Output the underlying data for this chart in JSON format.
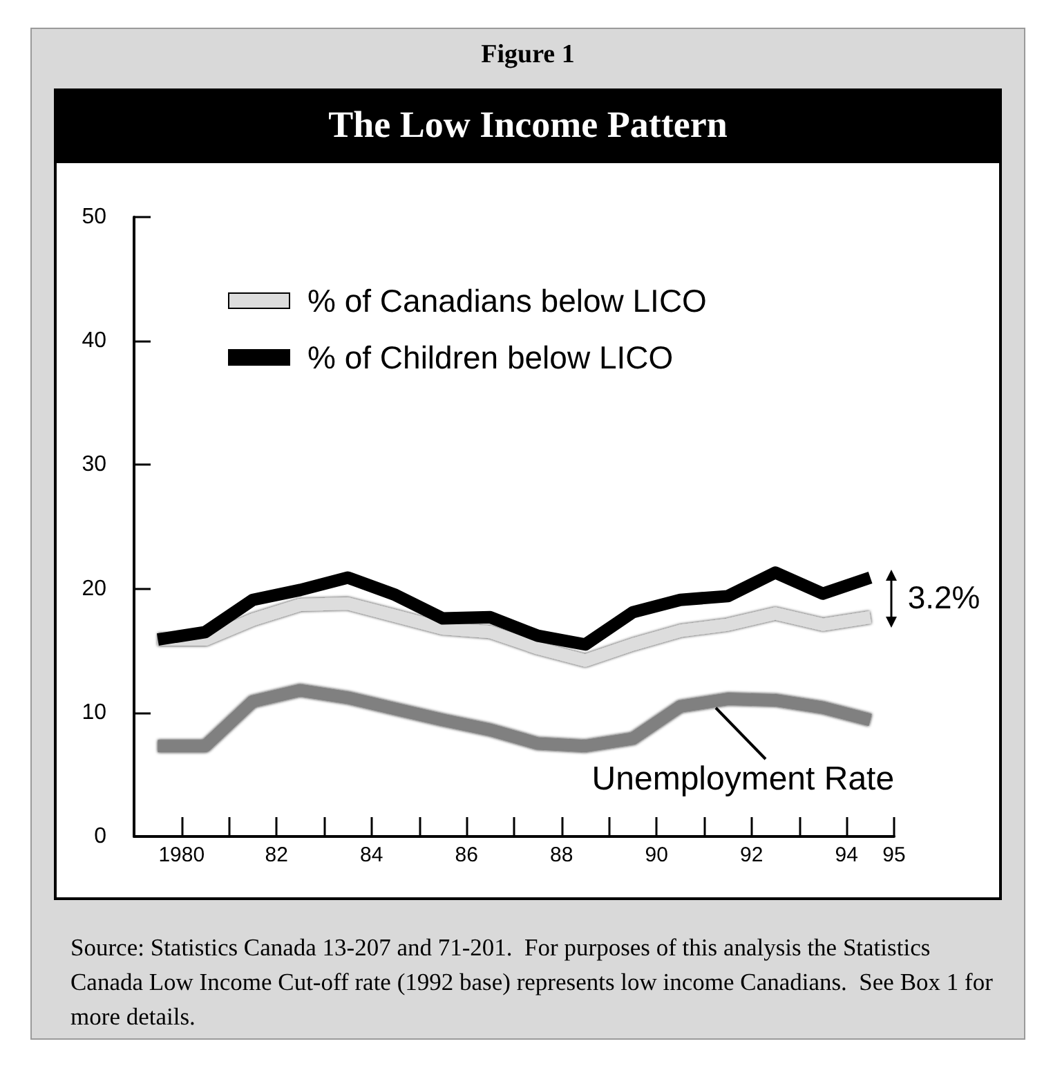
{
  "chart_data": {
    "type": "line",
    "subtitle": "Figure 1",
    "title": "The Low Income Pattern",
    "x": [
      1979.5,
      1980.5,
      1981.5,
      1982.5,
      1983.5,
      1984.5,
      1985.5,
      1986.5,
      1987.5,
      1988.5,
      1989.5,
      1990.5,
      1991.5,
      1992.5,
      1993.5,
      1994.5
    ],
    "series": [
      {
        "name": "% of Canadians below LICO",
        "color": "#dddddd",
        "values": [
          15.9,
          15.9,
          17.5,
          18.7,
          18.8,
          17.8,
          16.8,
          16.5,
          15.2,
          14.2,
          15.5,
          16.6,
          17.1,
          18.0,
          17.1,
          17.7
        ]
      },
      {
        "name": "% of Children below LICO",
        "color": "#000000",
        "values": [
          15.9,
          16.5,
          19.1,
          19.9,
          20.9,
          19.5,
          17.6,
          17.7,
          16.2,
          15.5,
          18.1,
          19.1,
          19.4,
          21.3,
          19.6,
          20.9
        ]
      },
      {
        "color": "#808080",
        "values": [
          7.3,
          7.3,
          10.9,
          11.8,
          11.2,
          10.3,
          9.4,
          8.6,
          7.5,
          7.3,
          7.9,
          10.5,
          11.1,
          11.0,
          10.4,
          9.4
        ]
      }
    ],
    "xlim": [
      1979,
      1995
    ],
    "xticks": [
      {
        "value": 1980,
        "label": "1980"
      },
      {
        "value": 1981,
        "label": null
      },
      {
        "value": 1982,
        "label": "82"
      },
      {
        "value": 1983,
        "label": null
      },
      {
        "value": 1984,
        "label": "84"
      },
      {
        "value": 1985,
        "label": null
      },
      {
        "value": 1986,
        "label": "86"
      },
      {
        "value": 1987,
        "label": null
      },
      {
        "value": 1988,
        "label": "88"
      },
      {
        "value": 1989,
        "label": null
      },
      {
        "value": 1990,
        "label": "90"
      },
      {
        "value": 1991,
        "label": null
      },
      {
        "value": 1992,
        "label": "92"
      },
      {
        "value": 1993,
        "label": null
      },
      {
        "value": 1994,
        "label": "94"
      },
      {
        "value": 1995,
        "label": "95"
      }
    ],
    "ylim": [
      0,
      50
    ],
    "yticks": [
      0,
      10,
      20,
      30,
      40,
      50
    ],
    "grid": false,
    "legend": "top left",
    "marker": "none",
    "line_style": "solid",
    "annotations": [
      "Source: Statistics Canada 13-207 and 71-201.  For purposes of this analysis the Statistics Canada Low Income Cut-off rate (1992 base) represents low income Canadians.  See Box 1 for more details.",
      "3.2%",
      {
        "text": "Unemployment Rate",
        "x": 1991.5,
        "y": 11.1
      }
    ]
  }
}
